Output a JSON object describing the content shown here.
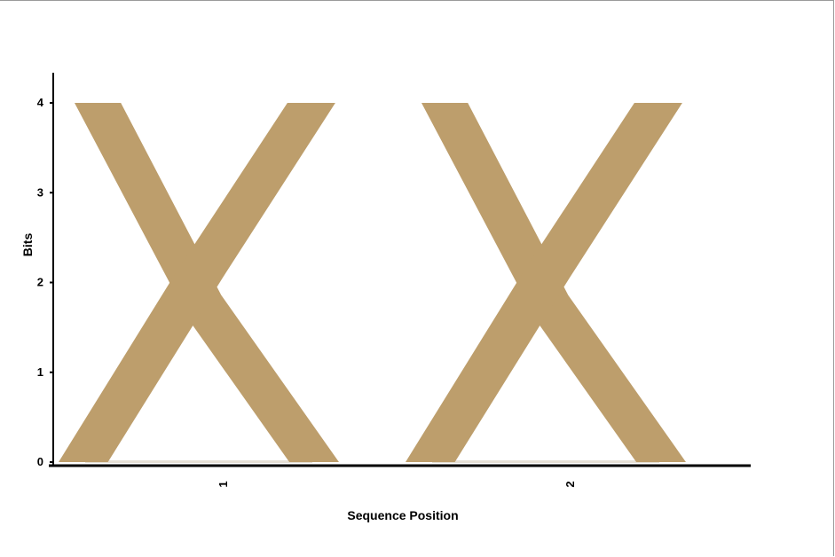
{
  "chart_data": {
    "type": "sequence-logo",
    "title": "",
    "xlabel": "Sequence Position",
    "ylabel": "Bits",
    "ylim": [
      0,
      4
    ],
    "yticks": [
      "0",
      "1",
      "2",
      "3",
      "4"
    ],
    "positions": [
      {
        "label": "1",
        "letters": [
          {
            "letter": "X",
            "bits": 4.0,
            "color": "#bd9e6c"
          }
        ]
      },
      {
        "label": "2",
        "letters": [
          {
            "letter": "X",
            "bits": 4.0,
            "color": "#bd9e6c"
          }
        ]
      }
    ]
  }
}
